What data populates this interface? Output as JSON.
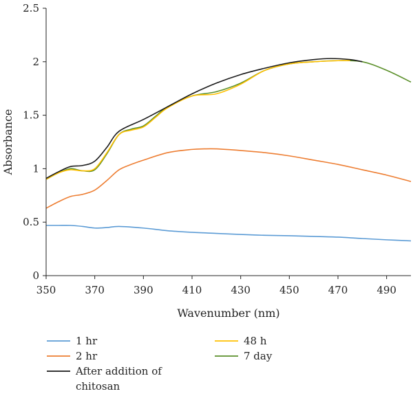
{
  "chart_data": {
    "type": "line",
    "title": "",
    "xlabel": "Wavenumber (nm)",
    "ylabel": "Absorbance",
    "xlim": [
      350,
      500
    ],
    "ylim": [
      0,
      2.5
    ],
    "x_ticks": [
      "350",
      "370",
      "390",
      "410",
      "430",
      "450",
      "470",
      "490"
    ],
    "y_ticks": [
      "0",
      "0.5",
      "1",
      "1.5",
      "2",
      "2.5"
    ],
    "grid": false,
    "legend_position": "bottom",
    "series": [
      {
        "name": "1 hr",
        "color": "#5b9bd5",
        "x": [
          350,
          355,
          360,
          365,
          370,
          375,
          380,
          390,
          400,
          410,
          420,
          430,
          440,
          450,
          460,
          470,
          480,
          490,
          500
        ],
        "y": [
          0.47,
          0.47,
          0.47,
          0.46,
          0.445,
          0.45,
          0.46,
          0.445,
          0.42,
          0.405,
          0.395,
          0.385,
          0.377,
          0.373,
          0.367,
          0.36,
          0.347,
          0.335,
          0.325
        ]
      },
      {
        "name": "2 hr",
        "color": "#ed7d31",
        "x": [
          350,
          355,
          360,
          365,
          370,
          375,
          380,
          385,
          390,
          400,
          410,
          415,
          420,
          430,
          440,
          450,
          460,
          470,
          480,
          490,
          500
        ],
        "y": [
          0.63,
          0.69,
          0.74,
          0.76,
          0.8,
          0.89,
          0.99,
          1.04,
          1.08,
          1.15,
          1.18,
          1.185,
          1.185,
          1.17,
          1.15,
          1.12,
          1.08,
          1.04,
          0.99,
          0.94,
          0.88
        ]
      },
      {
        "name": "After addition of chitosan",
        "color": "#1a1a1a",
        "x": [
          350,
          355,
          360,
          365,
          370,
          375,
          380,
          390,
          400,
          410,
          420,
          430,
          440,
          450,
          460,
          467,
          475,
          480
        ],
        "y": [
          0.91,
          0.97,
          1.02,
          1.03,
          1.07,
          1.2,
          1.35,
          1.46,
          1.58,
          1.7,
          1.8,
          1.88,
          1.94,
          1.99,
          2.02,
          2.03,
          2.02,
          2.0
        ]
      },
      {
        "name": "48 h",
        "color": "#ffc000",
        "x": [
          350,
          355,
          360,
          365,
          370,
          375,
          380,
          385,
          390,
          395,
          400,
          410,
          420,
          430,
          440,
          450,
          460,
          470,
          475
        ],
        "y": [
          0.9,
          0.96,
          0.99,
          0.98,
          1.0,
          1.15,
          1.32,
          1.36,
          1.39,
          1.48,
          1.57,
          1.68,
          1.7,
          1.79,
          1.92,
          1.98,
          2.0,
          2.01,
          2.01
        ]
      },
      {
        "name": "7 day",
        "color": "#5a8f29",
        "x": [
          350,
          355,
          360,
          365,
          370,
          375,
          380,
          385,
          390,
          395,
          400,
          410,
          420,
          430,
          440,
          450,
          460,
          470,
          480,
          490,
          500
        ],
        "y": [
          0.9,
          0.96,
          1.0,
          0.98,
          0.99,
          1.14,
          1.32,
          1.37,
          1.4,
          1.49,
          1.58,
          1.68,
          1.72,
          1.8,
          1.92,
          1.98,
          2.0,
          2.01,
          2.0,
          1.92,
          1.81
        ]
      }
    ]
  }
}
